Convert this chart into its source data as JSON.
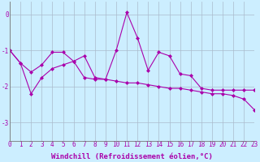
{
  "line1_x": [
    0,
    1,
    2,
    3,
    4,
    5,
    6,
    7,
    8,
    9,
    10,
    11,
    12,
    13,
    14,
    15,
    16,
    17,
    18,
    19,
    20,
    21,
    22,
    23
  ],
  "line1_y": [
    -1.0,
    -1.35,
    -1.6,
    -1.4,
    -1.05,
    -1.05,
    -1.3,
    -1.15,
    -1.75,
    -1.8,
    -1.0,
    0.05,
    -0.65,
    -1.55,
    -1.05,
    -1.15,
    -1.65,
    -1.7,
    -2.05,
    -2.1,
    -2.1,
    -2.1,
    -2.1,
    -2.1
  ],
  "line2_x": [
    0,
    1,
    2,
    3,
    4,
    5,
    6,
    7,
    8,
    9,
    10,
    11,
    12,
    13,
    14,
    15,
    16,
    17,
    18,
    19,
    20,
    21,
    22,
    23
  ],
  "line2_y": [
    -1.0,
    -1.35,
    -2.2,
    -1.75,
    -1.5,
    -1.4,
    -1.3,
    -1.75,
    -1.8,
    -1.8,
    -1.85,
    -1.9,
    -1.9,
    -1.95,
    -2.0,
    -2.05,
    -2.05,
    -2.1,
    -2.15,
    -2.2,
    -2.2,
    -2.25,
    -2.35,
    -2.65
  ],
  "line_color": "#aa00aa",
  "marker": "D",
  "marker_size": 2,
  "xlabel": "Windchill (Refroidissement éolien,°C)",
  "xlim": [
    0,
    23
  ],
  "ylim": [
    -3.5,
    0.35
  ],
  "yticks": [
    0,
    -1,
    -2,
    -3
  ],
  "xticks": [
    0,
    1,
    2,
    3,
    4,
    5,
    6,
    7,
    8,
    9,
    10,
    11,
    12,
    13,
    14,
    15,
    16,
    17,
    18,
    19,
    20,
    21,
    22,
    23
  ],
  "background_color": "#cceeff",
  "grid_color": "#aabbcc",
  "label_fontsize": 6.5,
  "tick_fontsize": 5.5
}
